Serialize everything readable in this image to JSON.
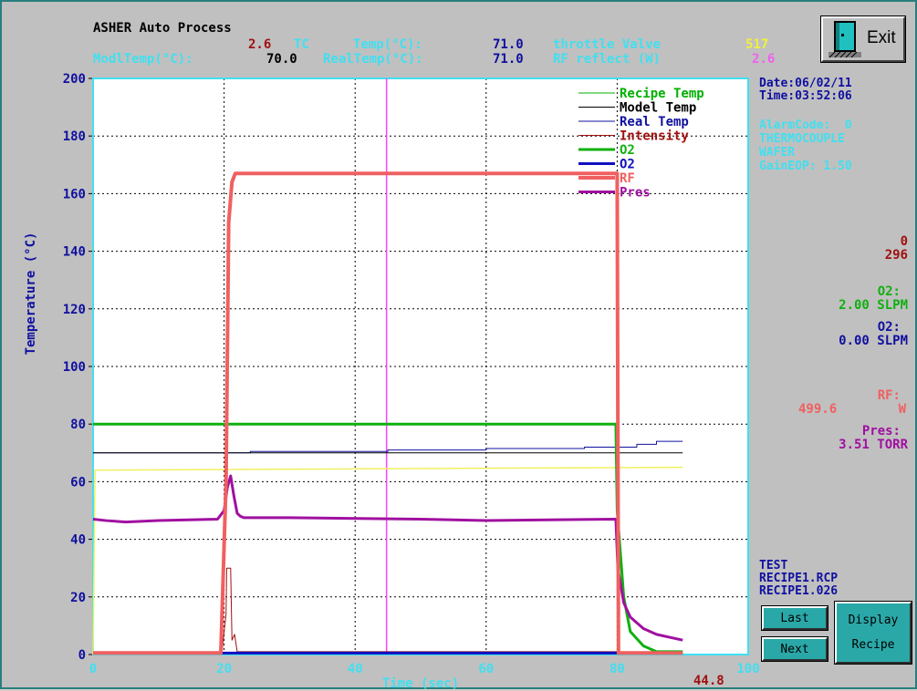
{
  "app": {
    "title": "ASHER Auto Process",
    "exit_label": "Exit"
  },
  "header": {
    "row1": {
      "tc_value": "2.6",
      "tc_label": "TC",
      "temp_label": "Temp(°C):",
      "temp_value": "71.0",
      "throttle_label": "throttle Valve",
      "throttle_value": "517"
    },
    "row2": {
      "modltemp_label": "ModlTemp(°C):",
      "modltemp_value": "70.0",
      "realtemp_label": "RealTemp(°C):",
      "realtemp_value": "71.0",
      "rf_reflect_label": "RF reflect (W)",
      "rf_reflect_value": "2.6"
    }
  },
  "side": {
    "date": "Date:06/02/11",
    "time": "Time:03:52:06",
    "alarm": "AlarmCode:  0",
    "thermocouple": "THERMOCOUPLE",
    "wafer": "WAFER",
    "gain": "GainEOP: 1.50",
    "val_a": "0",
    "val_b": "296",
    "o2_green_label": "O2:",
    "o2_green_value": "2.00 SLPM",
    "o2_blue_label": "O2:",
    "o2_blue_value": "0.00 SLPM",
    "rf_label": "RF:",
    "rf_value": "499.6",
    "rf_unit": "W",
    "pres_label": "Pres:",
    "pres_value": "3.51 TORR",
    "recipe_test": "TEST",
    "recipe_file": "RECIPE1.RCP",
    "recipe_log": "RECIPE1.026"
  },
  "buttons": {
    "last": "Last",
    "next": "Next",
    "display": "Display",
    "recipe": "Recipe"
  },
  "elapsed": "44.8",
  "colors": {
    "recipe_temp": "#00b000",
    "model_temp": "#000000",
    "real_temp": "#1010a0",
    "intensity": "#a01010",
    "o2_green": "#10b010",
    "o2_blue": "#1010c0",
    "rf": "#f06060",
    "pres": "#a010a0",
    "setpoint_yellow": "#f0f060",
    "cursor": "#ff40ff"
  },
  "chart_data": {
    "type": "line",
    "xlabel": "Time (sec)",
    "ylabel": "Temperature (°C)",
    "xlim": [
      0,
      100
    ],
    "ylim": [
      0,
      200
    ],
    "x_ticks": [
      0,
      20,
      40,
      60,
      80,
      100
    ],
    "y_ticks": [
      0,
      20,
      40,
      60,
      80,
      100,
      120,
      140,
      160,
      180,
      200
    ],
    "grid": true,
    "legend_position": "top-right",
    "cursor_x": 44.8,
    "series": [
      {
        "name": "Recipe Temp",
        "color": "#00b000",
        "width": 1,
        "x": [
          0,
          100
        ],
        "y": [
          0,
          0
        ]
      },
      {
        "name": "Model Temp",
        "color": "#000000",
        "width": 1,
        "x": [
          0,
          90
        ],
        "y": [
          70,
          70
        ]
      },
      {
        "name": "Real Temp",
        "color": "#1010a0",
        "width": 1,
        "x": [
          0,
          24,
          24,
          45,
          45,
          60,
          60,
          75,
          75,
          83,
          83,
          86,
          86,
          90
        ],
        "y": [
          70,
          70,
          70.5,
          70.5,
          71,
          71,
          71.5,
          71.5,
          72,
          72,
          73,
          73,
          74,
          74
        ]
      },
      {
        "name": "Intensity",
        "color": "#a01010",
        "width": 1,
        "x": [
          0,
          19.7,
          20.1,
          20.3,
          20.4,
          21,
          21.2,
          21.6,
          22,
          90
        ],
        "y": [
          1,
          1,
          10,
          14,
          30,
          30,
          5,
          7,
          1,
          1
        ]
      },
      {
        "name": "O2",
        "color": "#10b010",
        "width": 3,
        "x": [
          0,
          19.5,
          19.8,
          79.8,
          80,
          81,
          82,
          84,
          86,
          90
        ],
        "y": [
          80,
          80,
          80,
          80,
          50,
          20,
          8,
          3,
          1,
          1
        ]
      },
      {
        "name": "O2",
        "color": "#1010c0",
        "width": 3,
        "x": [
          0,
          90
        ],
        "y": [
          0.5,
          0.5
        ]
      },
      {
        "name": "RF",
        "color": "#f06060",
        "width": 4,
        "x": [
          0,
          19.5,
          20.3,
          20.7,
          21.2,
          21.7,
          79.7,
          80,
          80.2,
          90
        ],
        "y": [
          0.5,
          0.5,
          60,
          150,
          164,
          167,
          167,
          167,
          0.5,
          0.5
        ]
      },
      {
        "name": "Pres",
        "color": "#a010a0",
        "width": 3,
        "x": [
          0,
          2,
          5,
          10,
          19,
          20,
          20.5,
          21,
          21.5,
          22,
          22.5,
          23,
          30,
          50,
          60,
          79.8,
          80.1,
          81,
          82,
          84,
          86,
          88,
          90
        ],
        "y": [
          47,
          46.5,
          46,
          46.5,
          47,
          50,
          58,
          62,
          55,
          49,
          48,
          47.5,
          47.5,
          47,
          46.5,
          47,
          30,
          18,
          13,
          9,
          7,
          6,
          5
        ]
      }
    ],
    "extra_lines": [
      {
        "name": "setpoint",
        "color": "#f0f060",
        "x": [
          0,
          0.3,
          0.6,
          90
        ],
        "y": [
          0,
          64,
          64,
          65
        ]
      }
    ]
  }
}
